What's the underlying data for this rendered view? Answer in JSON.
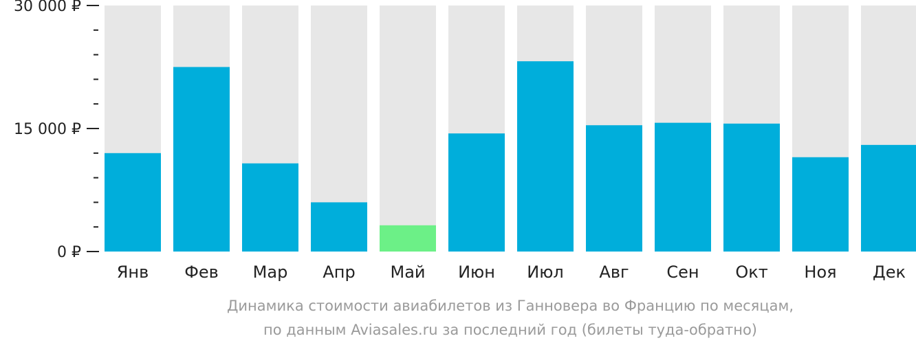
{
  "chart_data": {
    "type": "bar",
    "categories": [
      "Янв",
      "Фев",
      "Мар",
      "Апр",
      "Май",
      "Июн",
      "Июл",
      "Авг",
      "Сен",
      "Окт",
      "Ноя",
      "Дек"
    ],
    "values": [
      12000,
      22500,
      10750,
      6000,
      3200,
      14400,
      23200,
      15400,
      15700,
      15600,
      11500,
      13000
    ],
    "ylim": [
      0,
      30000
    ],
    "ytick_labels": [
      {
        "value": 0,
        "label": "0 ₽"
      },
      {
        "value": 15000,
        "label": "15 000 ₽"
      },
      {
        "value": 30000,
        "label": "30 000 ₽"
      }
    ],
    "minor_tick_step": 3000,
    "highlight_index": 4,
    "colors": {
      "bar": "#00aedb",
      "highlight": "#6cf087",
      "track": "#e7e7e7",
      "axis": "#222222"
    }
  },
  "caption": {
    "line1": "Динамика стоимости авиабилетов из Ганновера во Францию по месяцам,",
    "line2": "по данным Aviasales.ru за последний год (билеты туда-обратно)"
  }
}
